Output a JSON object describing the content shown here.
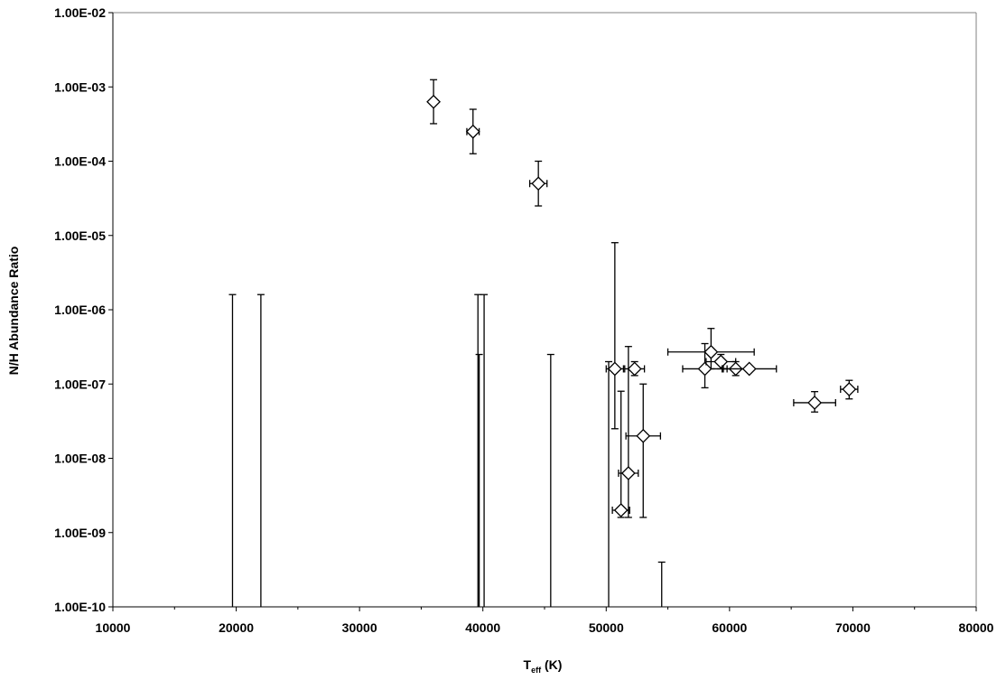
{
  "chart_data": {
    "type": "scatter",
    "title": "",
    "xlabel": "T",
    "xlabel_subscript": "eff",
    "xlabel_suffix": " (K)",
    "ylabel": "N/H Abundance Ratio",
    "xlim": [
      10000,
      80000
    ],
    "ylim": [
      1e-10,
      0.01
    ],
    "y_scale": "log",
    "x_ticks": [
      10000,
      20000,
      30000,
      40000,
      50000,
      60000,
      70000,
      80000
    ],
    "x_tick_labels": [
      "10000",
      "20000",
      "30000",
      "40000",
      "50000",
      "60000",
      "70000",
      "80000"
    ],
    "y_ticks": [
      1e-10,
      1e-09,
      1e-08,
      1e-07,
      1e-06,
      1e-05,
      0.0001,
      0.001,
      0.01
    ],
    "y_tick_labels": [
      "1.00E-10",
      "1.00E-09",
      "1.00E-08",
      "1.00E-07",
      "1.00E-06",
      "1.00E-05",
      "1.00E-04",
      "1.00E-03",
      "1.00E-02"
    ],
    "grid": false,
    "legend": "none",
    "marker": "diamond-open",
    "color": "#000000",
    "points": [
      {
        "x": 36000,
        "y": 0.00063,
        "ylo": 0.00032,
        "yhi": 0.00125
      },
      {
        "x": 39200,
        "y": 0.00025,
        "ylo": 0.000126,
        "yhi": 0.0005,
        "xerr": 500
      },
      {
        "x": 44500,
        "y": 5e-05,
        "ylo": 2.5e-05,
        "yhi": 0.0001,
        "xerr": 700
      },
      {
        "x": 50700,
        "y": 1.6e-07,
        "ylo": 2.5e-08,
        "yhi": 8e-06,
        "xerr": 700
      },
      {
        "x": 52300,
        "y": 1.6e-07,
        "ylo": 1.3e-07,
        "yhi": 2e-07,
        "xerr": 800
      },
      {
        "x": 51800,
        "y": 6.3e-09,
        "ylo": 1.6e-09,
        "yhi": 3.2e-07,
        "xerr": 800
      },
      {
        "x": 51200,
        "y": 2e-09,
        "ylo": 1.6e-09,
        "yhi": 8e-08,
        "xerr": 700
      },
      {
        "x": 53000,
        "y": 2e-08,
        "ylo": 1.6e-09,
        "yhi": 1e-07,
        "xerr": 1400
      },
      {
        "x": 58500,
        "y": 2.7e-07,
        "ylo": 1.6e-07,
        "yhi": 5.6e-07,
        "xerr": 3500
      },
      {
        "x": 58000,
        "y": 1.6e-07,
        "ylo": 8.9e-08,
        "yhi": 3.5e-07,
        "xerr": 1800
      },
      {
        "x": 59300,
        "y": 2e-07,
        "ylo": 1.6e-07,
        "yhi": 2.5e-07,
        "xerr": 1200
      },
      {
        "x": 60500,
        "y": 1.6e-07,
        "ylo": 1.3e-07,
        "yhi": 2e-07,
        "xerr": 1000
      },
      {
        "x": 61600,
        "y": 1.6e-07,
        "ylo": 1.6e-07,
        "yhi": 1.6e-07,
        "xerr": 2200
      },
      {
        "x": 66900,
        "y": 5.6e-08,
        "ylo": 4.2e-08,
        "yhi": 7.9e-08,
        "xerr": 1700
      },
      {
        "x": 69700,
        "y": 8.5e-08,
        "ylo": 6.3e-08,
        "yhi": 1.12e-07,
        "xerr": 700
      }
    ],
    "upper_limits": [
      {
        "x": 19700,
        "y": 1.6e-06
      },
      {
        "x": 22000,
        "y": 1.6e-06
      },
      {
        "x": 39600,
        "y": 1.6e-06
      },
      {
        "x": 40100,
        "y": 1.6e-06
      },
      {
        "x": 39700,
        "y": 2.5e-07
      },
      {
        "x": 45500,
        "y": 2.5e-07
      },
      {
        "x": 50200,
        "y": 2e-07
      },
      {
        "x": 54500,
        "y": 4e-10
      }
    ]
  }
}
